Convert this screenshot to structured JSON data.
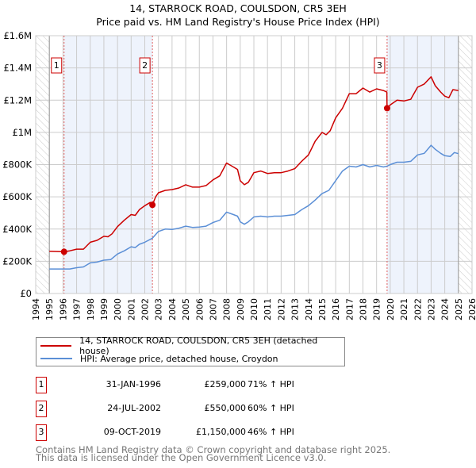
{
  "title": "14, STARROCK ROAD, COULSDON, CR5 3EH",
  "subtitle": "Price paid vs. HM Land Registry's House Price Index (HPI)",
  "colors": {
    "property": "#cc0000",
    "hpi": "#5b8fd6",
    "shade": "#eef3fc"
  },
  "chart_data": {
    "type": "line",
    "ylim": [
      0,
      1600000
    ],
    "xlim": [
      1994,
      2026
    ],
    "y_ticks": [
      0,
      200000,
      400000,
      600000,
      800000,
      1000000,
      1200000,
      1400000,
      1600000
    ],
    "y_tick_labels": [
      "£0",
      "£200K",
      "£400K",
      "£600K",
      "£800K",
      "£1M",
      "£1.2M",
      "£1.4M",
      "£1.6M"
    ],
    "x_tick_labels": [
      "1994",
      "1995",
      "1996",
      "1997",
      "1998",
      "1999",
      "2000",
      "2001",
      "2002",
      "2003",
      "2004",
      "2005",
      "2006",
      "2007",
      "2008",
      "2009",
      "2010",
      "2011",
      "2012",
      "2013",
      "2014",
      "2015",
      "2016",
      "2017",
      "2018",
      "2019",
      "2020",
      "2021",
      "2022",
      "2023",
      "2024",
      "2025",
      "2026"
    ],
    "grid": true,
    "series": [
      {
        "name": "14, STARROCK ROAD, COULSDON, CR5 3EH (detached house)",
        "color": "#cc0000",
        "x": [
          1995,
          1996.08,
          1996.5,
          1997,
          1997.5,
          1998,
          1998.5,
          1999,
          1999.3,
          1999.6,
          2000,
          2000.5,
          2001,
          2001.3,
          2001.6,
          2002,
          2002.4,
          2002.56,
          2002.8,
          2003,
          2003.5,
          2004,
          2004.5,
          2005,
          2005.5,
          2006,
          2006.5,
          2007,
          2007.5,
          2008,
          2008.5,
          2008.8,
          2009,
          2009.3,
          2009.6,
          2010,
          2010.5,
          2011,
          2011.5,
          2012,
          2012.5,
          2013,
          2013.5,
          2014,
          2014.5,
          2015,
          2015.3,
          2015.6,
          2016,
          2016.5,
          2017,
          2017.5,
          2018,
          2018.5,
          2019,
          2019.5,
          2019.75,
          2019.77,
          2020,
          2020.5,
          2021,
          2021.5,
          2022,
          2022.5,
          2023,
          2023.3,
          2023.7,
          2024,
          2024.3,
          2024.6,
          2025
        ],
        "y": [
          262000,
          259000,
          265000,
          275000,
          275000,
          318000,
          330000,
          355000,
          352000,
          370000,
          415000,
          455000,
          490000,
          485000,
          520000,
          545000,
          565000,
          550000,
          600000,
          625000,
          640000,
          645000,
          655000,
          675000,
          660000,
          660000,
          670000,
          705000,
          730000,
          810000,
          785000,
          770000,
          700000,
          675000,
          690000,
          750000,
          760000,
          745000,
          750000,
          750000,
          760000,
          775000,
          820000,
          860000,
          945000,
          1000000,
          985000,
          1010000,
          1090000,
          1150000,
          1240000,
          1240000,
          1275000,
          1250000,
          1270000,
          1260000,
          1250000,
          1150000,
          1170000,
          1200000,
          1195000,
          1205000,
          1280000,
          1300000,
          1345000,
          1290000,
          1250000,
          1225000,
          1215000,
          1265000,
          1260000
        ]
      },
      {
        "name": "HPI: Average price, detached house, Croydon",
        "color": "#5b8fd6",
        "x": [
          1995,
          1996,
          1996.5,
          1997,
          1997.5,
          1998,
          1998.5,
          1999,
          1999.5,
          2000,
          2000.5,
          2001,
          2001.3,
          2001.6,
          2002,
          2002.56,
          2003,
          2003.5,
          2004,
          2004.5,
          2005,
          2005.5,
          2006,
          2006.5,
          2007,
          2007.5,
          2008,
          2008.5,
          2008.8,
          2009,
          2009.3,
          2009.6,
          2010,
          2010.5,
          2011,
          2011.5,
          2012,
          2012.5,
          2013,
          2013.5,
          2014,
          2014.5,
          2015,
          2015.5,
          2016,
          2016.5,
          2017,
          2017.5,
          2018,
          2018.5,
          2019,
          2019.5,
          2019.77,
          2020,
          2020.5,
          2021,
          2021.5,
          2022,
          2022.5,
          2023,
          2023.3,
          2023.7,
          2024,
          2024.4,
          2024.7,
          2025
        ],
        "y": [
          152000,
          152000,
          152000,
          160000,
          165000,
          190000,
          195000,
          207000,
          210000,
          245000,
          265000,
          290000,
          285000,
          305000,
          318000,
          343000,
          385000,
          400000,
          398000,
          405000,
          418000,
          410000,
          412000,
          418000,
          440000,
          455000,
          505000,
          490000,
          480000,
          445000,
          430000,
          445000,
          475000,
          480000,
          475000,
          480000,
          480000,
          485000,
          490000,
          520000,
          545000,
          580000,
          620000,
          640000,
          700000,
          760000,
          790000,
          785000,
          800000,
          785000,
          795000,
          785000,
          790000,
          800000,
          815000,
          815000,
          820000,
          860000,
          870000,
          920000,
          895000,
          870000,
          855000,
          850000,
          875000,
          868000
        ]
      }
    ],
    "sales": [
      {
        "label": "1",
        "x": 1996.08,
        "y": 259000
      },
      {
        "label": "2",
        "x": 2002.56,
        "y": 550000
      },
      {
        "label": "3",
        "x": 2019.77,
        "y": 1150000
      }
    ],
    "shaded_ranges": [
      [
        1996.08,
        2002.56
      ],
      [
        2019.77,
        2025
      ]
    ],
    "hatched_ranges": [
      [
        1994,
        1995
      ],
      [
        2025,
        2026
      ]
    ],
    "legend_position": "below"
  },
  "legend": {
    "property": "14, STARROCK ROAD, COULSDON, CR5 3EH (detached house)",
    "hpi": "HPI: Average price, detached house, Croydon"
  },
  "transactions": [
    {
      "num": "1",
      "date": "31-JAN-1996",
      "price": "£259,000",
      "hpi": "71% ↑ HPI"
    },
    {
      "num": "2",
      "date": "24-JUL-2002",
      "price": "£550,000",
      "hpi": "60% ↑ HPI"
    },
    {
      "num": "3",
      "date": "09-OCT-2019",
      "price": "£1,150,000",
      "hpi": "46% ↑ HPI"
    }
  ],
  "footer": {
    "line1": "Contains HM Land Registry data © Crown copyright and database right 2025.",
    "line2": "This data is licensed under the Open Government Licence v3.0."
  }
}
